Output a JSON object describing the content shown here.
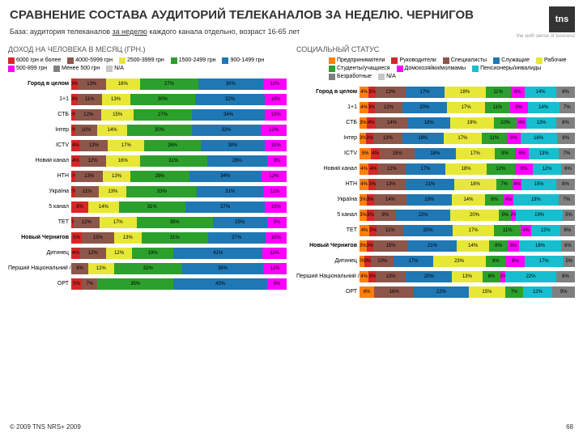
{
  "title": "СРАВНЕНИЕ СОСТАВА АУДИТОРИЙ ТЕЛЕКАНАЛОВ ЗА НЕДЕЛЮ. ЧЕРНИГОВ",
  "subtitle_before": "База: аудитория телеканалов ",
  "subtitle_underline": "за неделю",
  "subtitle_after": " каждого канала отдельно, возраст 16-65 лет",
  "logo": "tns",
  "tagline": "the sixth sense of business",
  "footer": "© 2009 TNS   NRS+ 2009",
  "page": "68",
  "left": {
    "heading": "ДОХОД НА ЧЕЛОВЕКА В МЕСЯЦ (ГРН.)",
    "legend": [
      {
        "c": "#d62728",
        "t": "6000 грн и более"
      },
      {
        "c": "#8c564b",
        "t": "4000-5999 грн"
      },
      {
        "c": "#e7e738",
        "t": "2500-3999 грн"
      },
      {
        "c": "#2ca02c",
        "t": "1500-2499 грн"
      },
      {
        "c": "#1f77b4",
        "t": "900-1499 грн"
      },
      {
        "c": "#ff00ff",
        "t": "500-899 грн"
      },
      {
        "c": "#808080",
        "t": "Менее 500 грн"
      },
      {
        "c": "#c7c7c7",
        "t": "N/A"
      }
    ],
    "rows": [
      {
        "label": "Город в целом",
        "bold": true,
        "segs": [
          {
            "c": "#d62728",
            "v": 3
          },
          {
            "c": "#8c564b",
            "v": 13
          },
          {
            "c": "#e7e738",
            "v": 16
          },
          {
            "c": "#2ca02c",
            "v": 27
          },
          {
            "c": "#1f77b4",
            "v": 30
          },
          {
            "c": "#ff00ff",
            "v": 11
          }
        ]
      },
      {
        "label": "1+1",
        "segs": [
          {
            "c": "#d62728",
            "v": 3
          },
          {
            "c": "#8c564b",
            "v": 11
          },
          {
            "c": "#e7e738",
            "v": 13
          },
          {
            "c": "#2ca02c",
            "v": 30
          },
          {
            "c": "#1f77b4",
            "v": 32
          },
          {
            "c": "#ff00ff",
            "v": 10
          }
        ]
      },
      {
        "label": "СТБ",
        "segs": [
          {
            "c": "#d62728",
            "v": 2
          },
          {
            "c": "#8c564b",
            "v": 12
          },
          {
            "c": "#e7e738",
            "v": 15
          },
          {
            "c": "#2ca02c",
            "v": 27
          },
          {
            "c": "#1f77b4",
            "v": 34
          },
          {
            "c": "#ff00ff",
            "v": 10
          }
        ]
      },
      {
        "label": "Інтер",
        "segs": [
          {
            "c": "#d62728",
            "v": 2
          },
          {
            "c": "#8c564b",
            "v": 10
          },
          {
            "c": "#e7e738",
            "v": 14
          },
          {
            "c": "#2ca02c",
            "v": 30
          },
          {
            "c": "#1f77b4",
            "v": 32
          },
          {
            "c": "#ff00ff",
            "v": 12
          }
        ]
      },
      {
        "label": "ICTV",
        "segs": [
          {
            "c": "#d62728",
            "v": 4
          },
          {
            "c": "#8c564b",
            "v": 13
          },
          {
            "c": "#e7e738",
            "v": 17
          },
          {
            "c": "#2ca02c",
            "v": 26
          },
          {
            "c": "#1f77b4",
            "v": 30
          },
          {
            "c": "#ff00ff",
            "v": 10
          }
        ]
      },
      {
        "label": "Новий канал",
        "segs": [
          {
            "c": "#d62728",
            "v": 4
          },
          {
            "c": "#8c564b",
            "v": 12
          },
          {
            "c": "#e7e738",
            "v": 16
          },
          {
            "c": "#2ca02c",
            "v": 31
          },
          {
            "c": "#1f77b4",
            "v": 28
          },
          {
            "c": "#ff00ff",
            "v": 9
          }
        ]
      },
      {
        "label": "НТН",
        "segs": [
          {
            "c": "#d62728",
            "v": 2
          },
          {
            "c": "#8c564b",
            "v": 13
          },
          {
            "c": "#e7e738",
            "v": 13
          },
          {
            "c": "#2ca02c",
            "v": 28
          },
          {
            "c": "#1f77b4",
            "v": 34
          },
          {
            "c": "#ff00ff",
            "v": 12
          }
        ]
      },
      {
        "label": "Україна",
        "segs": [
          {
            "c": "#d62728",
            "v": 2
          },
          {
            "c": "#8c564b",
            "v": 11
          },
          {
            "c": "#e7e738",
            "v": 13
          },
          {
            "c": "#2ca02c",
            "v": 33
          },
          {
            "c": "#1f77b4",
            "v": 31
          },
          {
            "c": "#ff00ff",
            "v": 11
          }
        ]
      },
      {
        "label": "5 канал",
        "segs": [
          {
            "c": "#d62728",
            "v": 8
          },
          {
            "c": "#8c564b",
            "v": 0
          },
          {
            "c": "#e7e738",
            "v": 14
          },
          {
            "c": "#2ca02c",
            "v": 31
          },
          {
            "c": "#1f77b4",
            "v": 37
          },
          {
            "c": "#ff00ff",
            "v": 10
          }
        ]
      },
      {
        "label": "ТЕТ",
        "segs": [
          {
            "c": "#d62728",
            "v": 1
          },
          {
            "c": "#8c564b",
            "v": 12
          },
          {
            "c": "#e7e738",
            "v": 17
          },
          {
            "c": "#2ca02c",
            "v": 35
          },
          {
            "c": "#1f77b4",
            "v": 25
          },
          {
            "c": "#ff00ff",
            "v": 9
          }
        ]
      },
      {
        "label": "Новый Чернигов",
        "bold": true,
        "segs": [
          {
            "c": "#d62728",
            "v": 5
          },
          {
            "c": "#8c564b",
            "v": 15
          },
          {
            "c": "#e7e738",
            "v": 13
          },
          {
            "c": "#2ca02c",
            "v": 31
          },
          {
            "c": "#1f77b4",
            "v": 27
          },
          {
            "c": "#ff00ff",
            "v": 10
          }
        ]
      },
      {
        "label": "Дитинец",
        "segs": [
          {
            "c": "#d62728",
            "v": 4
          },
          {
            "c": "#8c564b",
            "v": 12
          },
          {
            "c": "#e7e738",
            "v": 12
          },
          {
            "c": "#2ca02c",
            "v": 19
          },
          {
            "c": "#1f77b4",
            "v": 41
          },
          {
            "c": "#ff00ff",
            "v": 11
          }
        ]
      },
      {
        "label": "Перший Національний / УТ-1",
        "segs": [
          {
            "c": "#d62728",
            "v": 0
          },
          {
            "c": "#8c564b",
            "v": 8
          },
          {
            "c": "#e7e738",
            "v": 12
          },
          {
            "c": "#2ca02c",
            "v": 32
          },
          {
            "c": "#1f77b4",
            "v": 38
          },
          {
            "c": "#ff00ff",
            "v": 11
          }
        ]
      },
      {
        "label": "ОРТ",
        "segs": [
          {
            "c": "#d62728",
            "v": 5
          },
          {
            "c": "#8c564b",
            "v": 7
          },
          {
            "c": "#e7e738",
            "v": 0
          },
          {
            "c": "#2ca02c",
            "v": 35
          },
          {
            "c": "#1f77b4",
            "v": 43
          },
          {
            "c": "#ff00ff",
            "v": 9
          }
        ]
      }
    ]
  },
  "right": {
    "heading": "СОЦИАЛЬНЫЙ СТАТУС",
    "legend": [
      {
        "c": "#ff7f0e",
        "t": "Предприниматели"
      },
      {
        "c": "#d62728",
        "t": "Руководители"
      },
      {
        "c": "#8c564b",
        "t": "Специалисты"
      },
      {
        "c": "#1f77b4",
        "t": "Служащие"
      },
      {
        "c": "#e7e738",
        "t": "Рабочие"
      },
      {
        "c": "#2ca02c",
        "t": "Студенты/учащиеся"
      },
      {
        "c": "#ff00ff",
        "t": "Домохозяйки/молмамы"
      },
      {
        "c": "#17becf",
        "t": "Пенсионеры/инвалиды"
      },
      {
        "c": "#808080",
        "t": "Безработные"
      },
      {
        "c": "#c7c7c7",
        "t": "N/A"
      }
    ],
    "rows": [
      {
        "label": "Город в целом",
        "bold": true,
        "segs": [
          {
            "c": "#ff7f0e",
            "v": 4
          },
          {
            "c": "#d62728",
            "v": 3
          },
          {
            "c": "#8c564b",
            "v": 13
          },
          {
            "c": "#1f77b4",
            "v": 17
          },
          {
            "c": "#e7e738",
            "v": 18
          },
          {
            "c": "#2ca02c",
            "v": 11
          },
          {
            "c": "#ff00ff",
            "v": 6
          },
          {
            "c": "#17becf",
            "v": 14
          },
          {
            "c": "#808080",
            "v": 8
          }
        ]
      },
      {
        "label": "1+1",
        "segs": [
          {
            "c": "#ff7f0e",
            "v": 4
          },
          {
            "c": "#d62728",
            "v": 3
          },
          {
            "c": "#8c564b",
            "v": 12
          },
          {
            "c": "#1f77b4",
            "v": 20
          },
          {
            "c": "#e7e738",
            "v": 17
          },
          {
            "c": "#2ca02c",
            "v": 11
          },
          {
            "c": "#ff00ff",
            "v": 8
          },
          {
            "c": "#17becf",
            "v": 14
          },
          {
            "c": "#808080",
            "v": 7
          }
        ]
      },
      {
        "label": "СТБ",
        "segs": [
          {
            "c": "#ff7f0e",
            "v": 3
          },
          {
            "c": "#d62728",
            "v": 4
          },
          {
            "c": "#8c564b",
            "v": 14
          },
          {
            "c": "#1f77b4",
            "v": 18
          },
          {
            "c": "#e7e738",
            "v": 19
          },
          {
            "c": "#2ca02c",
            "v": 10
          },
          {
            "c": "#ff00ff",
            "v": 4
          },
          {
            "c": "#17becf",
            "v": 13
          },
          {
            "c": "#808080",
            "v": 8
          }
        ]
      },
      {
        "label": "Інтер",
        "segs": [
          {
            "c": "#ff7f0e",
            "v": 3
          },
          {
            "c": "#d62728",
            "v": 3
          },
          {
            "c": "#8c564b",
            "v": 13
          },
          {
            "c": "#1f77b4",
            "v": 18
          },
          {
            "c": "#e7e738",
            "v": 17
          },
          {
            "c": "#2ca02c",
            "v": 11
          },
          {
            "c": "#ff00ff",
            "v": 6
          },
          {
            "c": "#17becf",
            "v": 16
          },
          {
            "c": "#808080",
            "v": 8
          }
        ]
      },
      {
        "label": "ICTV",
        "segs": [
          {
            "c": "#ff7f0e",
            "v": 5
          },
          {
            "c": "#d62728",
            "v": 4
          },
          {
            "c": "#8c564b",
            "v": 15
          },
          {
            "c": "#1f77b4",
            "v": 18
          },
          {
            "c": "#e7e738",
            "v": 17
          },
          {
            "c": "#2ca02c",
            "v": 9
          },
          {
            "c": "#ff00ff",
            "v": 6
          },
          {
            "c": "#17becf",
            "v": 13
          },
          {
            "c": "#808080",
            "v": 7
          }
        ]
      },
      {
        "label": "Новий канал",
        "segs": [
          {
            "c": "#ff7f0e",
            "v": 4
          },
          {
            "c": "#d62728",
            "v": 4
          },
          {
            "c": "#8c564b",
            "v": 12
          },
          {
            "c": "#1f77b4",
            "v": 17
          },
          {
            "c": "#e7e738",
            "v": 18
          },
          {
            "c": "#2ca02c",
            "v": 12
          },
          {
            "c": "#ff00ff",
            "v": 8
          },
          {
            "c": "#17becf",
            "v": 12
          },
          {
            "c": "#808080",
            "v": 6
          }
        ]
      },
      {
        "label": "НТН",
        "segs": [
          {
            "c": "#ff7f0e",
            "v": 4
          },
          {
            "c": "#d62728",
            "v": 3
          },
          {
            "c": "#8c564b",
            "v": 13
          },
          {
            "c": "#1f77b4",
            "v": 21
          },
          {
            "c": "#e7e738",
            "v": 18
          },
          {
            "c": "#2ca02c",
            "v": 7
          },
          {
            "c": "#ff00ff",
            "v": 4
          },
          {
            "c": "#17becf",
            "v": 15
          },
          {
            "c": "#808080",
            "v": 8
          }
        ]
      },
      {
        "label": "Україна",
        "segs": [
          {
            "c": "#ff7f0e",
            "v": 3
          },
          {
            "c": "#d62728",
            "v": 3
          },
          {
            "c": "#8c564b",
            "v": 14
          },
          {
            "c": "#1f77b4",
            "v": 19
          },
          {
            "c": "#e7e738",
            "v": 14
          },
          {
            "c": "#2ca02c",
            "v": 8
          },
          {
            "c": "#ff00ff",
            "v": 4
          },
          {
            "c": "#17becf",
            "v": 19
          },
          {
            "c": "#808080",
            "v": 7
          }
        ]
      },
      {
        "label": "5 канал",
        "segs": [
          {
            "c": "#ff7f0e",
            "v": 3
          },
          {
            "c": "#d62728",
            "v": 3
          },
          {
            "c": "#8c564b",
            "v": 9
          },
          {
            "c": "#1f77b4",
            "v": 22
          },
          {
            "c": "#e7e738",
            "v": 20
          },
          {
            "c": "#2ca02c",
            "v": 5
          },
          {
            "c": "#ff00ff",
            "v": 2
          },
          {
            "c": "#17becf",
            "v": 19
          },
          {
            "c": "#808080",
            "v": 5
          }
        ]
      },
      {
        "label": "ТЕТ",
        "segs": [
          {
            "c": "#ff7f0e",
            "v": 4
          },
          {
            "c": "#d62728",
            "v": 3
          },
          {
            "c": "#8c564b",
            "v": 11
          },
          {
            "c": "#1f77b4",
            "v": 20
          },
          {
            "c": "#e7e738",
            "v": 17
          },
          {
            "c": "#2ca02c",
            "v": 11
          },
          {
            "c": "#ff00ff",
            "v": 4
          },
          {
            "c": "#17becf",
            "v": 12
          },
          {
            "c": "#808080",
            "v": 6
          }
        ]
      },
      {
        "label": "Новый Чернигов",
        "bold": true,
        "segs": [
          {
            "c": "#ff7f0e",
            "v": 3
          },
          {
            "c": "#d62728",
            "v": 3
          },
          {
            "c": "#8c564b",
            "v": 15
          },
          {
            "c": "#1f77b4",
            "v": 21
          },
          {
            "c": "#e7e738",
            "v": 14
          },
          {
            "c": "#2ca02c",
            "v": 8
          },
          {
            "c": "#ff00ff",
            "v": 5
          },
          {
            "c": "#17becf",
            "v": 18
          },
          {
            "c": "#808080",
            "v": 6
          }
        ]
      },
      {
        "label": "Дитинец",
        "segs": [
          {
            "c": "#ff7f0e",
            "v": 2
          },
          {
            "c": "#d62728",
            "v": 3
          },
          {
            "c": "#8c564b",
            "v": 10
          },
          {
            "c": "#1f77b4",
            "v": 17
          },
          {
            "c": "#e7e738",
            "v": 23
          },
          {
            "c": "#2ca02c",
            "v": 9
          },
          {
            "c": "#ff00ff",
            "v": 8
          },
          {
            "c": "#17becf",
            "v": 17
          },
          {
            "c": "#808080",
            "v": 5
          }
        ]
      },
      {
        "label": "Перший Національний / УТ-1",
        "segs": [
          {
            "c": "#ff7f0e",
            "v": 4
          },
          {
            "c": "#d62728",
            "v": 3
          },
          {
            "c": "#8c564b",
            "v": 13
          },
          {
            "c": "#1f77b4",
            "v": 20
          },
          {
            "c": "#e7e738",
            "v": 13
          },
          {
            "c": "#2ca02c",
            "v": 8
          },
          {
            "c": "#ff00ff",
            "v": 2
          },
          {
            "c": "#17becf",
            "v": 22
          },
          {
            "c": "#808080",
            "v": 8
          }
        ]
      },
      {
        "label": "ОРТ",
        "segs": [
          {
            "c": "#ff7f0e",
            "v": 6
          },
          {
            "c": "#d62728",
            "v": 0
          },
          {
            "c": "#8c564b",
            "v": 16
          },
          {
            "c": "#1f77b4",
            "v": 22
          },
          {
            "c": "#e7e738",
            "v": 15
          },
          {
            "c": "#2ca02c",
            "v": 7
          },
          {
            "c": "#ff00ff",
            "v": 0
          },
          {
            "c": "#17becf",
            "v": 12
          },
          {
            "c": "#808080",
            "v": 9
          }
        ]
      }
    ]
  }
}
